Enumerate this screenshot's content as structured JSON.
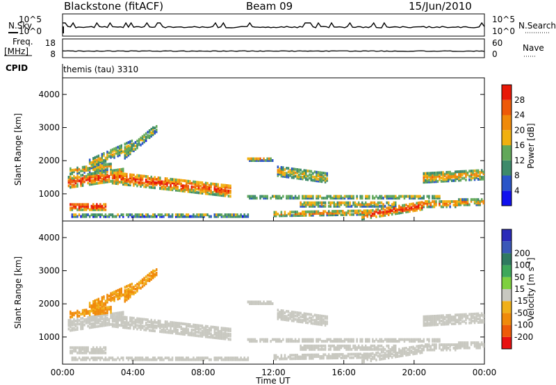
{
  "header": {
    "station": "Blackstone (fitACF)",
    "beam": "Beam 09",
    "date": "15/Jun/2010"
  },
  "labels": {
    "nsky": "N.Sky",
    "nsearch": "N.Search",
    "freq": "Freq.",
    "freq_unit": "[MHz]",
    "nave": "Nave",
    "cpid": "CPID",
    "cpid_value": "themis (tau) 3310",
    "noise_tick_hi": "10^5",
    "noise_tick_lo": "10^0",
    "freq_tick_hi": "18",
    "freq_tick_lo": "8",
    "nave_tick_hi": "60",
    "nave_tick_lo": "0"
  },
  "colors": {
    "power_scale": [
      "#1010ee",
      "#2a55c8",
      "#3d8a6a",
      "#62a85a",
      "#f0b010",
      "#f08a0a",
      "#ee5a08",
      "#e81808"
    ],
    "velocity_scale": [
      "#e81010",
      "#ee5a08",
      "#f08a0a",
      "#f0b01a",
      "#c8c8c0",
      "#7ed040",
      "#3ea85a",
      "#2f7a60",
      "#3a58b8",
      "#2a2ab8"
    ]
  },
  "chart_data": [
    {
      "type": "line",
      "panel": "noise",
      "series": [
        {
          "name": "N.Sky",
          "style": "solid"
        },
        {
          "name": "N.Search",
          "style": "dotted"
        }
      ]
    },
    {
      "type": "line",
      "panel": "frequency",
      "series": [
        {
          "name": "Freq.",
          "values_approx": 9.7,
          "style": "solid"
        },
        {
          "name": "Nave",
          "style": "dotted"
        }
      ]
    },
    {
      "type": "heatmap",
      "panel": "power",
      "xlabel": "",
      "ylabel": "Slant Range [km]",
      "ylim": [
        180,
        4500
      ],
      "yticks": [
        "1000",
        "2000",
        "3000",
        "4000"
      ],
      "colorbar": {
        "label": "Power [dB]",
        "ticks": [
          "4",
          "8",
          "12",
          "16",
          "20",
          "24",
          "28"
        ],
        "range": [
          0,
          32
        ]
      }
    },
    {
      "type": "heatmap",
      "panel": "velocity",
      "xlabel": "Time UT",
      "ylabel": "Slant Range [km]",
      "ylim": [
        180,
        4500
      ],
      "yticks": [
        "1000",
        "2000",
        "3000",
        "4000"
      ],
      "xticks": [
        "00:00",
        "04:00",
        "08:00",
        "12:00",
        "16:00",
        "20:00",
        "00:00"
      ],
      "colorbar": {
        "label_main": "Velocity",
        "label_unit": "[m s",
        "label_exp": "-1",
        "label_close": "]",
        "ticks": [
          "-200",
          "-100",
          "-50",
          "-15",
          "15",
          "50",
          "100",
          "200"
        ]
      }
    }
  ]
}
